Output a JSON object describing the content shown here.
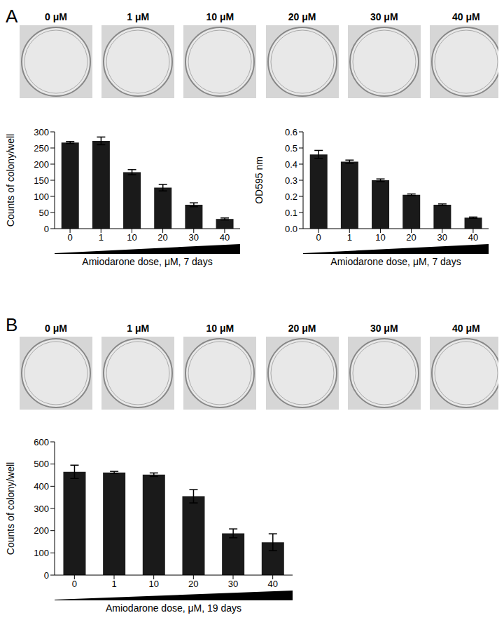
{
  "panel_labels": [
    "A",
    "B"
  ],
  "plate_labels": [
    [
      "0 μM",
      "1 μM",
      "10 μM",
      "20 μM",
      "30 μM",
      "40 μM"
    ],
    [
      "0 μM",
      "1 μM",
      "10 μM",
      "20 μM",
      "30 μM",
      "40 μM"
    ]
  ],
  "chart_data": [
    {
      "type": "bar",
      "panel": "A",
      "y_label": "Counts of colony/well",
      "x_label": "Amiodarone dose, μM, 7 days",
      "categories": [
        "0",
        "1",
        "10",
        "20",
        "30",
        "40"
      ],
      "values": [
        267,
        272,
        175,
        127,
        74,
        30
      ],
      "errors": [
        3,
        12,
        8,
        10,
        6,
        3
      ],
      "color": "#1a1a1a",
      "ylim": [
        0,
        300
      ],
      "yticks": [
        0,
        50,
        100,
        150,
        200,
        250,
        300
      ],
      "grid": false
    },
    {
      "type": "bar",
      "panel": "A",
      "y_label": "OD595 nm",
      "x_label": "Amiodarone dose, μM, 7 days",
      "categories": [
        "0",
        "1",
        "10",
        "20",
        "30",
        "40"
      ],
      "values": [
        0.46,
        0.415,
        0.3,
        0.21,
        0.148,
        0.068
      ],
      "errors": [
        0.025,
        0.01,
        0.008,
        0.005,
        0.005,
        0.004
      ],
      "color": "#1a1a1a",
      "ylim": [
        0,
        0.6
      ],
      "yticks": [
        {
          "value": 0,
          "label": "0.0"
        },
        0.1,
        0.2,
        0.3,
        0.4,
        0.5,
        0.6
      ],
      "grid": false
    },
    {
      "type": "bar",
      "panel": "B",
      "y_label": "Counts of colony/well",
      "x_label": "Amiodarone dose, μM, 19 days",
      "categories": [
        "0",
        "1",
        "10",
        "20",
        "30",
        "40"
      ],
      "values": [
        465,
        462,
        452,
        355,
        188,
        148
      ],
      "errors": [
        30,
        5,
        8,
        30,
        20,
        38
      ],
      "color": "#1a1a1a",
      "ylim": [
        0,
        600
      ],
      "yticks": [
        0,
        100,
        200,
        300,
        400,
        500,
        600
      ],
      "grid": false
    }
  ]
}
